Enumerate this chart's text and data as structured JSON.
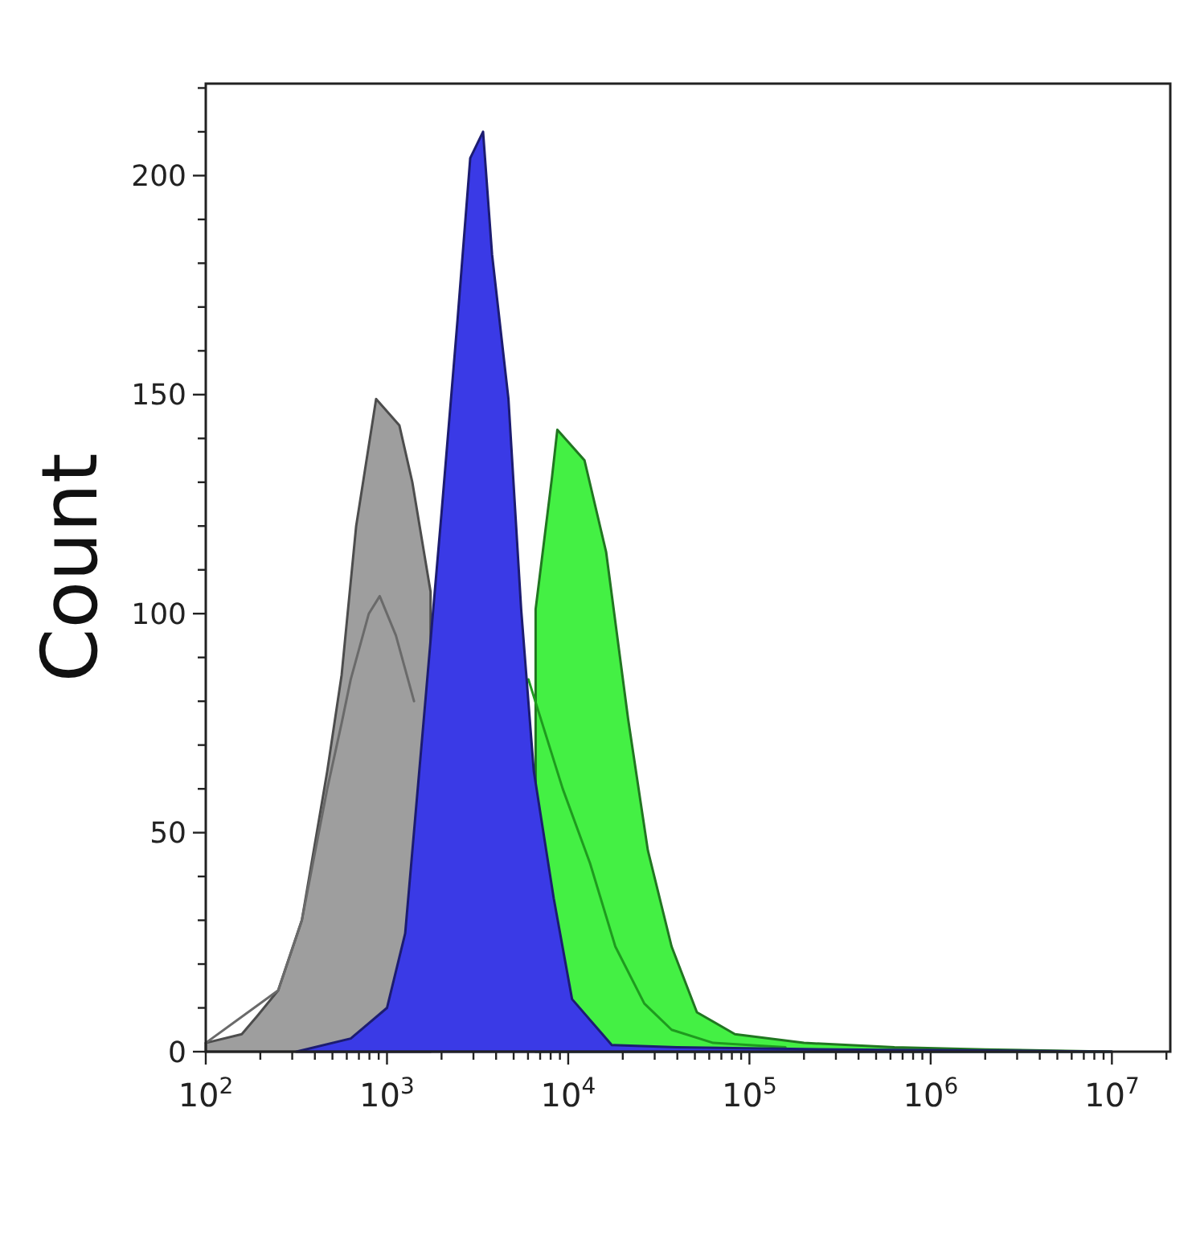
{
  "chart_data": {
    "type": "area",
    "ylabel": "Count",
    "log": "x",
    "grid": false,
    "xlim": [
      100,
      21000000
    ],
    "ylim": [
      0,
      221
    ],
    "xticks": [
      {
        "value": 100,
        "label": "10$^{2}$"
      },
      {
        "value": 200,
        "label": null
      },
      {
        "value": 300,
        "label": null
      },
      {
        "value": 400,
        "label": null
      },
      {
        "value": 500,
        "label": null
      },
      {
        "value": 600,
        "label": null
      },
      {
        "value": 700,
        "label": null
      },
      {
        "value": 800,
        "label": null
      },
      {
        "value": 900,
        "label": null
      },
      {
        "value": 1000,
        "label": "10$^{3}$"
      },
      {
        "value": 2000,
        "label": null
      },
      {
        "value": 3000,
        "label": null
      },
      {
        "value": 4000,
        "label": null
      },
      {
        "value": 5000,
        "label": null
      },
      {
        "value": 6000,
        "label": null
      },
      {
        "value": 7000,
        "label": null
      },
      {
        "value": 8000,
        "label": null
      },
      {
        "value": 9000,
        "label": null
      },
      {
        "value": 10000,
        "label": "10$^{4}$"
      },
      {
        "value": 20000,
        "label": null
      },
      {
        "value": 30000,
        "label": null
      },
      {
        "value": 40000,
        "label": null
      },
      {
        "value": 50000,
        "label": null
      },
      {
        "value": 60000,
        "label": null
      },
      {
        "value": 70000,
        "label": null
      },
      {
        "value": 80000,
        "label": null
      },
      {
        "value": 90000,
        "label": null
      },
      {
        "value": 100000,
        "label": "10$^{5}$"
      },
      {
        "value": 200000,
        "label": null
      },
      {
        "value": 300000,
        "label": null
      },
      {
        "value": 400000,
        "label": null
      },
      {
        "value": 500000,
        "label": null
      },
      {
        "value": 600000,
        "label": null
      },
      {
        "value": 700000,
        "label": null
      },
      {
        "value": 800000,
        "label": null
      },
      {
        "value": 900000,
        "label": null
      },
      {
        "value": 1000000,
        "label": "10$^{6}$"
      },
      {
        "value": 2000000,
        "label": null
      },
      {
        "value": 3000000,
        "label": null
      },
      {
        "value": 4000000,
        "label": null
      },
      {
        "value": 5000000,
        "label": null
      },
      {
        "value": 6000000,
        "label": null
      },
      {
        "value": 7000000,
        "label": null
      },
      {
        "value": 8000000,
        "label": null
      },
      {
        "value": 9000000,
        "label": null
      },
      {
        "value": 10000000,
        "label": "10$^{7}$"
      },
      {
        "value": 20000000,
        "label": null
      }
    ],
    "yticks": [
      0,
      {
        "value": 10,
        "label": null
      },
      {
        "value": 20,
        "label": null
      },
      {
        "value": 30,
        "label": null
      },
      {
        "value": 40,
        "label": null
      },
      50,
      {
        "value": 60,
        "label": null
      },
      {
        "value": 70,
        "label": null
      },
      {
        "value": 80,
        "label": null
      },
      {
        "value": 90,
        "label": null
      },
      100,
      {
        "value": 110,
        "label": null
      },
      {
        "value": 120,
        "label": null
      },
      {
        "value": 130,
        "label": null
      },
      {
        "value": 140,
        "label": null
      },
      150,
      {
        "value": 160,
        "label": null
      },
      {
        "value": 170,
        "label": null
      },
      {
        "value": 180,
        "label": null
      },
      {
        "value": 190,
        "label": null
      },
      200,
      {
        "value": 210,
        "label": null
      },
      {
        "value": 220,
        "label": null
      }
    ],
    "series": [
      {
        "color": "#9e9e9e",
        "x": [
          100,
          158,
          191,
          251,
          339,
          468,
          562,
          676,
          871,
          1170,
          1380,
          1740
        ],
        "values": [
          2,
          4,
          8,
          14,
          30,
          64,
          86,
          120,
          149,
          143,
          130,
          105
        ]
      },
      {
        "type": "line",
        "color": "#6a6a6a",
        "x": [
          100,
          251,
          339,
          468,
          562,
          631,
          794,
          912,
          1120,
          1410
        ],
        "values": [
          2,
          14,
          30,
          60,
          75,
          85,
          100,
          104,
          95,
          80
        ]
      },
      {
        "color": "#44f044",
        "x": [
          6610,
          8130,
          8710,
          12300,
          16200,
          21400,
          27500,
          37200,
          51300,
          83200,
          200000,
          631000,
          2000000,
          10000000
        ],
        "values": [
          101,
          131,
          142,
          135,
          114,
          76,
          46,
          24,
          9,
          4,
          2,
          1,
          0.5,
          0
        ]
      },
      {
        "type": "line",
        "color": "#1f9a1f",
        "x": [
          6030,
          9330,
          13200,
          18200,
          26300,
          37200,
          63100,
          158000
        ],
        "values": [
          85,
          60,
          43,
          24,
          11,
          5,
          2,
          1
        ]
      },
      {
        "color": "#3a3ae6",
        "x": [
          316,
          631,
          1000,
          1260,
          1620,
          2000,
          2450,
          2880,
          3390,
          3800,
          4680,
          5500,
          6460,
          8320,
          10500,
          17400,
          39800,
          316000,
          10000000
        ],
        "values": [
          0,
          3,
          10,
          27,
          79,
          123,
          167,
          204,
          210,
          182,
          149,
          101,
          64,
          35,
          12,
          1.5,
          1,
          0.5,
          0
        ]
      }
    ]
  }
}
